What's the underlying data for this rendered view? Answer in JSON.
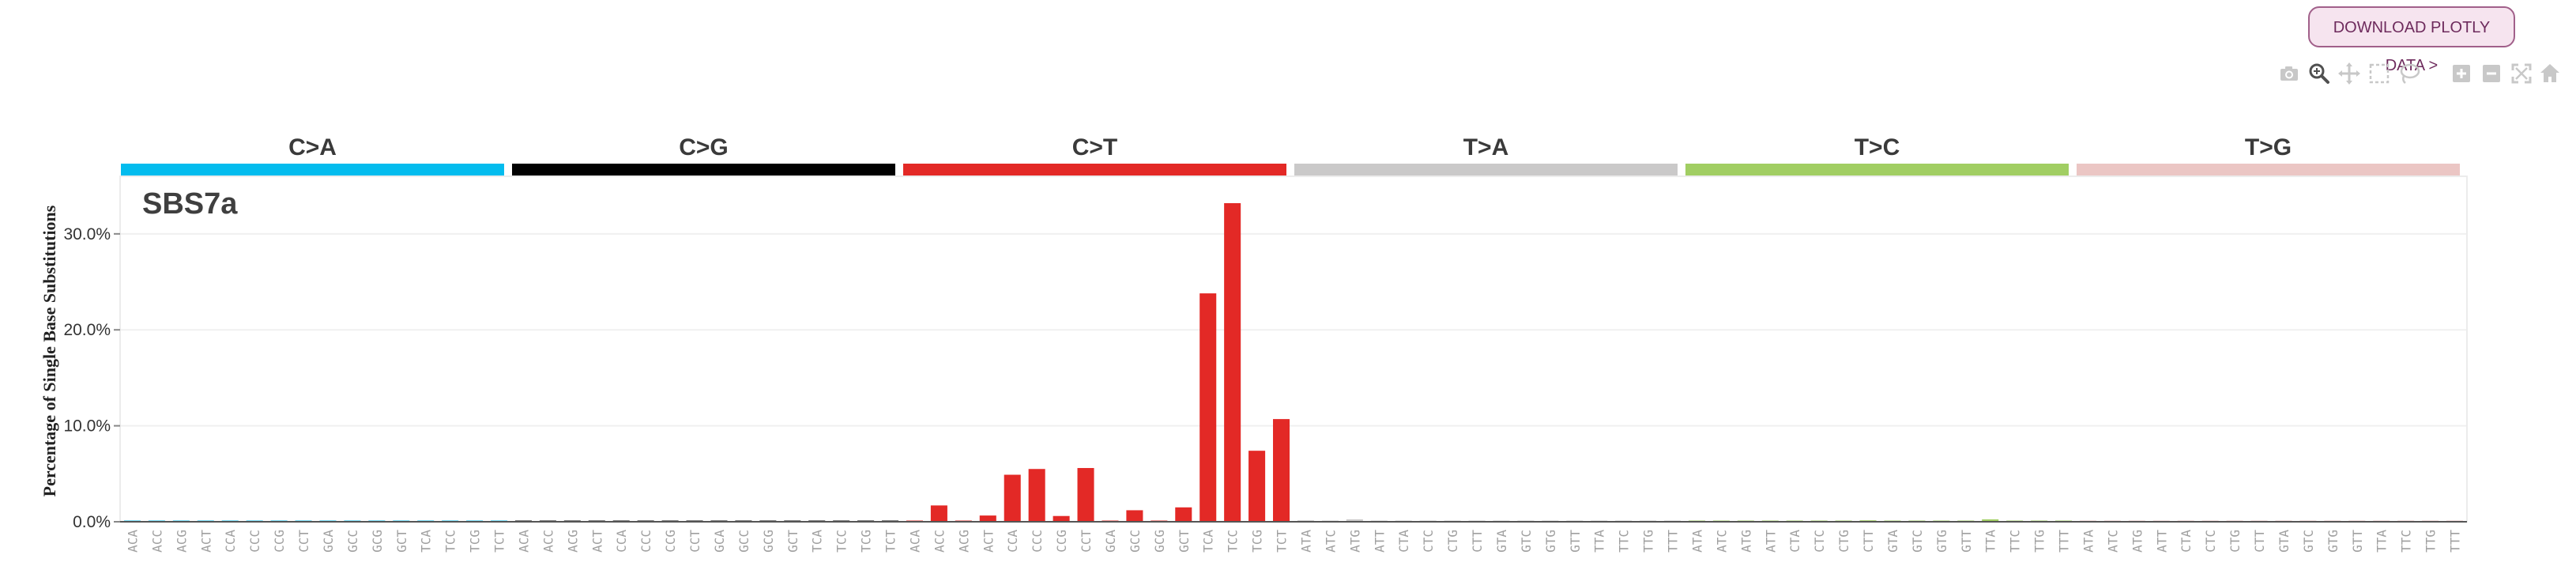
{
  "toolbar": {
    "download_label": "DOWNLOAD PLOTLY DATA >",
    "modebar_icons": [
      "camera-icon",
      "zoom-icon",
      "pan-icon",
      "box-select-icon",
      "lasso-select-icon",
      "zoom-in-icon",
      "zoom-out-icon",
      "autoscale-icon",
      "reset-axes-icon"
    ],
    "active_icon": "zoom-icon"
  },
  "chart_data": {
    "type": "bar",
    "title": "SBS7a",
    "ylabel": "Percentage of Single Base Substitutions",
    "xlabel": "",
    "ylim": [
      0,
      36
    ],
    "yticks": [
      "0.0%",
      "10.0%",
      "20.0%",
      "30.0%"
    ],
    "ytick_values": [
      0,
      10,
      20,
      30
    ],
    "grid": true,
    "groups": [
      {
        "name": "C>A",
        "color": "#03bcee"
      },
      {
        "name": "C>G",
        "color": "#010101"
      },
      {
        "name": "C>T",
        "color": "#e32926"
      },
      {
        "name": "T>A",
        "color": "#cac9c9"
      },
      {
        "name": "T>C",
        "color": "#a1ce63"
      },
      {
        "name": "T>G",
        "color": "#ebc6c4"
      }
    ],
    "categories": [
      "ACA",
      "ACC",
      "ACG",
      "ACT",
      "CCA",
      "CCC",
      "CCG",
      "CCT",
      "GCA",
      "GCC",
      "GCG",
      "GCT",
      "TCA",
      "TCC",
      "TCG",
      "TCT",
      "ACA",
      "ACC",
      "ACG",
      "ACT",
      "CCA",
      "CCC",
      "CCG",
      "CCT",
      "GCA",
      "GCC",
      "GCG",
      "GCT",
      "TCA",
      "TCC",
      "TCG",
      "TCT",
      "ACA",
      "ACC",
      "ACG",
      "ACT",
      "CCA",
      "CCC",
      "CCG",
      "CCT",
      "GCA",
      "GCC",
      "GCG",
      "GCT",
      "TCA",
      "TCC",
      "TCG",
      "TCT",
      "ATA",
      "ATC",
      "ATG",
      "ATT",
      "CTA",
      "CTC",
      "CTG",
      "CTT",
      "GTA",
      "GTC",
      "GTG",
      "GTT",
      "TTA",
      "TTC",
      "TTG",
      "TTT",
      "ATA",
      "ATC",
      "ATG",
      "ATT",
      "CTA",
      "CTC",
      "CTG",
      "CTT",
      "GTA",
      "GTC",
      "GTG",
      "GTT",
      "TTA",
      "TTC",
      "TTG",
      "TTT",
      "ATA",
      "ATC",
      "ATG",
      "ATT",
      "CTA",
      "CTC",
      "CTG",
      "CTT",
      "GTA",
      "GTC",
      "GTG",
      "GTT",
      "TTA",
      "TTC",
      "TTG",
      "TTT"
    ],
    "values": [
      0.05,
      0.03,
      0.02,
      0.04,
      0.05,
      0.03,
      0.02,
      0.04,
      0.03,
      0.02,
      0.02,
      0.03,
      0.04,
      0.02,
      0.02,
      0.03,
      0.08,
      0.06,
      0.04,
      0.07,
      0.03,
      0.05,
      0.03,
      0.06,
      0.06,
      0.07,
      0.06,
      0.07,
      0.03,
      0.06,
      0.04,
      0.07,
      0.05,
      1.7,
      0.05,
      0.65,
      4.9,
      5.5,
      0.6,
      5.6,
      0.08,
      1.2,
      0.05,
      1.5,
      23.8,
      33.2,
      7.4,
      10.7,
      0.15,
      0.05,
      0.25,
      0.05,
      0.03,
      0.02,
      0.02,
      0.03,
      0.02,
      0.02,
      0.02,
      0.03,
      0.03,
      0.02,
      0.03,
      0.05,
      0.05,
      0.05,
      0.04,
      0.05,
      0.05,
      0.04,
      0.05,
      0.15,
      0.03,
      0.03,
      0.05,
      0.05,
      0.25,
      0.05,
      0.05,
      0.05,
      0.03,
      0.03,
      0.03,
      0.03,
      0.03,
      0.04,
      0.03,
      0.05,
      0.03,
      0.03,
      0.03,
      0.03,
      0.03,
      0.03,
      0.03,
      0.03
    ]
  }
}
